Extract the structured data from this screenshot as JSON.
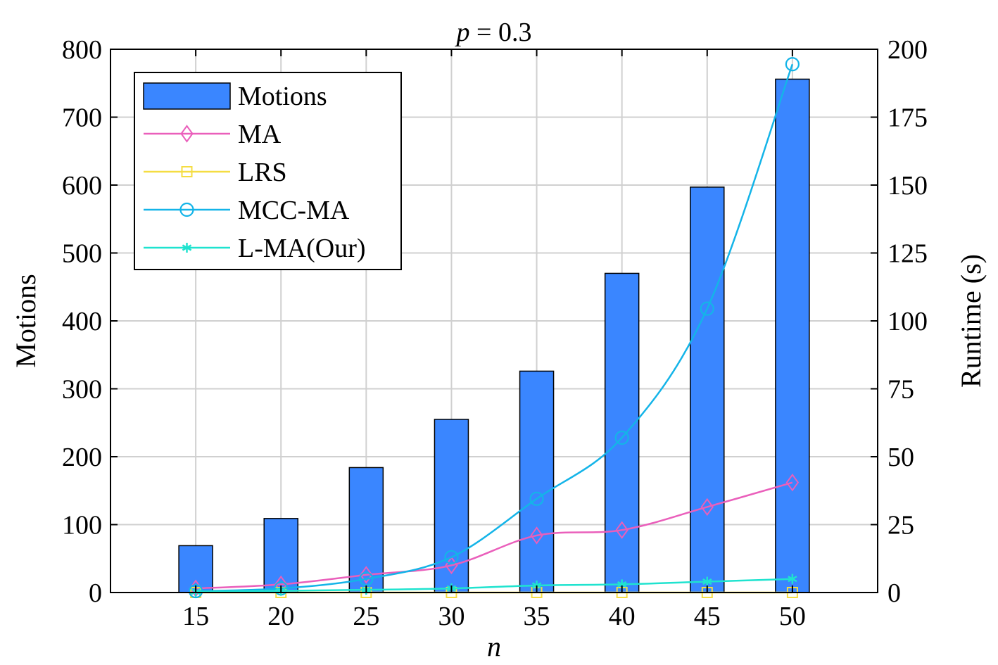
{
  "chart_data": {
    "type": "bar+line",
    "title_var": "p",
    "title_rest": " = 0.3",
    "xlabel": "n",
    "ylabel_left": "Motions",
    "ylabel_right": "Runtime (s)",
    "categories": [
      "15",
      "20",
      "25",
      "30",
      "35",
      "40",
      "45",
      "50"
    ],
    "x_values": [
      15,
      20,
      25,
      30,
      35,
      40,
      45,
      50
    ],
    "xlim": [
      10,
      55
    ],
    "ylim_left": [
      0,
      800
    ],
    "ylim_right": [
      0,
      200
    ],
    "yticks_left": [
      0,
      100,
      200,
      300,
      400,
      500,
      600,
      700,
      800
    ],
    "yticks_right": [
      0,
      25,
      50,
      75,
      100,
      125,
      150,
      175,
      200
    ],
    "grid": true,
    "legend_position": "top-left",
    "bars": {
      "name": "Motions",
      "axis": "left",
      "color": "#3a86ff",
      "values": [
        69,
        109,
        184,
        255,
        326,
        470,
        597,
        756
      ]
    },
    "series": [
      {
        "name": "MA",
        "axis": "right",
        "color": "#ea5fbb",
        "marker": "diamond",
        "values": [
          1.5,
          3,
          6.5,
          10,
          21,
          23,
          31.5,
          40.5
        ]
      },
      {
        "name": "LRS",
        "axis": "right",
        "color": "#f5dd42",
        "marker": "square",
        "values": [
          0,
          0,
          0,
          0,
          0,
          0,
          0,
          0
        ]
      },
      {
        "name": "MCC-MA",
        "axis": "right",
        "color": "#14b4e8",
        "marker": "circle",
        "values": [
          0.5,
          1.5,
          5,
          13,
          34.5,
          57,
          104.5,
          194.5
        ]
      },
      {
        "name": "L-MA(Our)",
        "axis": "right",
        "color": "#1fe3cf",
        "marker": "asterisk",
        "values": [
          0.3,
          0.6,
          1.0,
          1.5,
          2.6,
          3.0,
          4.0,
          5.0
        ]
      }
    ]
  }
}
